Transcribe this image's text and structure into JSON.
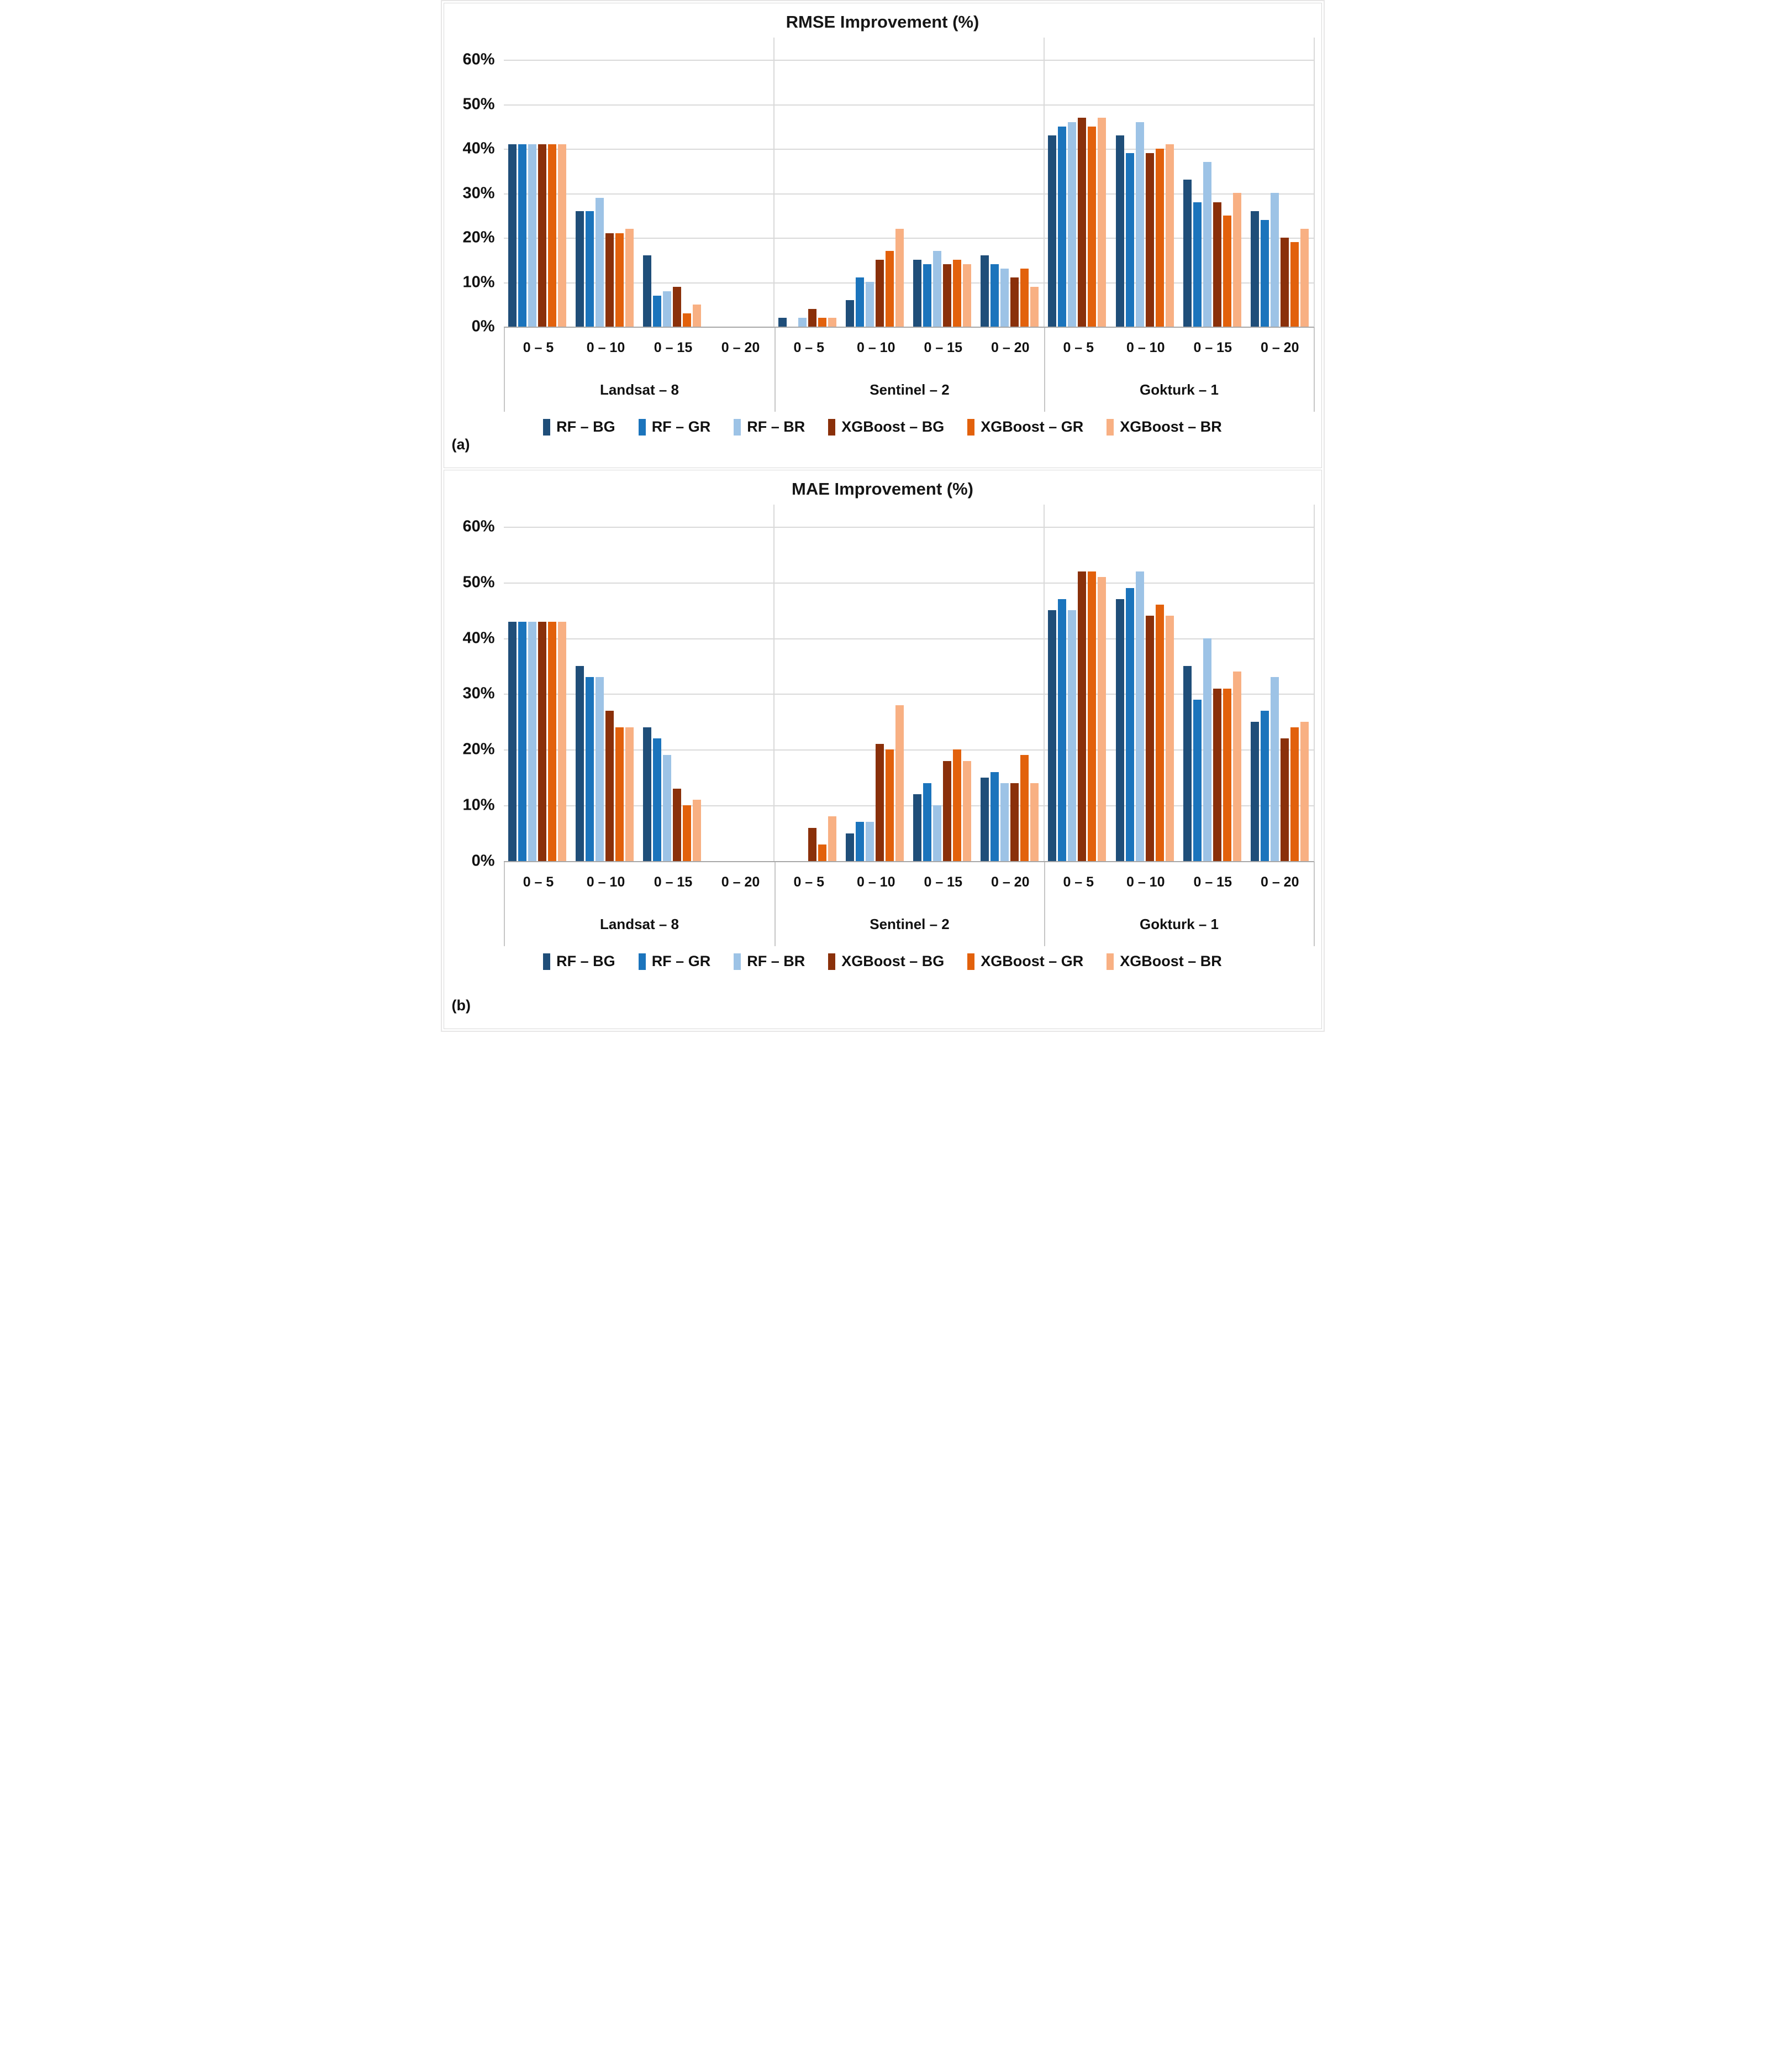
{
  "figure": {
    "panels": [
      {
        "label": "(a)"
      },
      {
        "label": "(b)"
      }
    ],
    "y_axis_ticks": [
      "60%",
      "50%",
      "40%",
      "30%",
      "20%",
      "10%",
      "0%"
    ],
    "style": {
      "gridline_color": "#D9D9D9",
      "axis_line_color": "#A8A8A8",
      "label_border_color": "#C6C6C6",
      "panel_border_color": "#D9D9D9",
      "text_color": "#111111",
      "background": "#FFFFFF"
    }
  },
  "chart_data": [
    {
      "type": "bar",
      "title": "RMSE Improvement (%)",
      "ylabel": "",
      "ylim": [
        0,
        65
      ],
      "grid": true,
      "legend_position": "bottom",
      "satellites": [
        "Landsat – 8",
        "Sentinel – 2",
        "Gokturk – 1"
      ],
      "bins": [
        "0 – 5",
        "0 – 10",
        "0 – 15",
        "0 – 20"
      ],
      "series": [
        {
          "name": "RF – BG",
          "color": "#1F4E79",
          "values": [
            41,
            26,
            16,
            0,
            2,
            6,
            15,
            16,
            43,
            43,
            33,
            26
          ]
        },
        {
          "name": "RF – GR",
          "color": "#1B74BC",
          "values": [
            41,
            26,
            7,
            0,
            0,
            11,
            14,
            14,
            45,
            39,
            28,
            24
          ]
        },
        {
          "name": "RF – BR",
          "color": "#9DC3E6",
          "values": [
            41,
            29,
            8,
            0,
            2,
            10,
            17,
            13,
            46,
            46,
            37,
            30
          ]
        },
        {
          "name": "XGBoost – BG",
          "color": "#8A300A",
          "values": [
            41,
            21,
            9,
            0,
            4,
            15,
            14,
            11,
            47,
            39,
            28,
            20
          ]
        },
        {
          "name": "XGBoost – GR",
          "color": "#E2610C",
          "values": [
            41,
            21,
            3,
            0,
            2,
            17,
            15,
            13,
            45,
            40,
            25,
            19
          ]
        },
        {
          "name": "XGBoost – BR",
          "color": "#F8B083",
          "values": [
            41,
            22,
            5,
            0,
            2,
            22,
            14,
            9,
            47,
            41,
            30,
            22
          ]
        }
      ]
    },
    {
      "type": "bar",
      "title": "MAE Improvement (%)",
      "ylabel": "",
      "ylim": [
        0,
        65
      ],
      "grid": true,
      "legend_position": "bottom",
      "satellites": [
        "Landsat – 8",
        "Sentinel – 2",
        "Gokturk – 1"
      ],
      "bins": [
        "0 – 5",
        "0 – 10",
        "0 – 15",
        "0 – 20"
      ],
      "series": [
        {
          "name": "RF – BG",
          "color": "#1F4E79",
          "values": [
            43,
            35,
            24,
            0,
            0,
            5,
            12,
            15,
            45,
            47,
            35,
            25
          ]
        },
        {
          "name": "RF – GR",
          "color": "#1B74BC",
          "values": [
            43,
            33,
            22,
            0,
            0,
            7,
            14,
            16,
            47,
            49,
            29,
            27
          ]
        },
        {
          "name": "RF – BR",
          "color": "#9DC3E6",
          "values": [
            43,
            33,
            19,
            0,
            0,
            7,
            10,
            14,
            45,
            52,
            40,
            33
          ]
        },
        {
          "name": "XGBoost – BG",
          "color": "#8A300A",
          "values": [
            43,
            27,
            13,
            0,
            6,
            21,
            18,
            14,
            52,
            44,
            31,
            22
          ]
        },
        {
          "name": "XGBoost – GR",
          "color": "#E2610C",
          "values": [
            43,
            24,
            10,
            0,
            3,
            20,
            20,
            19,
            52,
            46,
            31,
            24
          ]
        },
        {
          "name": "XGBoost – BR",
          "color": "#F8B083",
          "values": [
            43,
            24,
            11,
            0,
            8,
            28,
            18,
            14,
            51,
            44,
            34,
            25
          ]
        }
      ]
    }
  ]
}
